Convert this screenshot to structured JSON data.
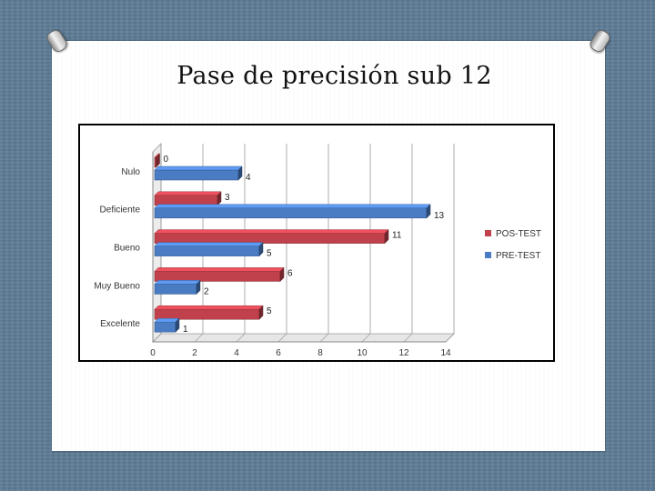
{
  "slide": {
    "title": "Pase de precisión sub 12"
  },
  "chart_data": {
    "type": "bar",
    "orientation": "horizontal",
    "categories": [
      "Nulo",
      "Deficiente",
      "Bueno",
      "Muy Bueno",
      "Excelente"
    ],
    "series": [
      {
        "name": "POS-TEST",
        "color": "#c0414b",
        "values": [
          0,
          3,
          11,
          6,
          5
        ]
      },
      {
        "name": "PRE-TEST",
        "color": "#4a7cc4",
        "values": [
          4,
          13,
          5,
          2,
          1
        ]
      }
    ],
    "data_labels": {
      "POS-TEST": [
        "0",
        "3",
        "11",
        "6",
        "5"
      ],
      "PRE-TEST": [
        "4",
        "13",
        "5",
        "2",
        "1"
      ]
    },
    "xticks": [
      "0",
      "2",
      "4",
      "6",
      "8",
      "10",
      "12",
      "14"
    ],
    "xlim": [
      0,
      14
    ],
    "grid": "vertical",
    "legend_position": "right",
    "style": "3d"
  }
}
